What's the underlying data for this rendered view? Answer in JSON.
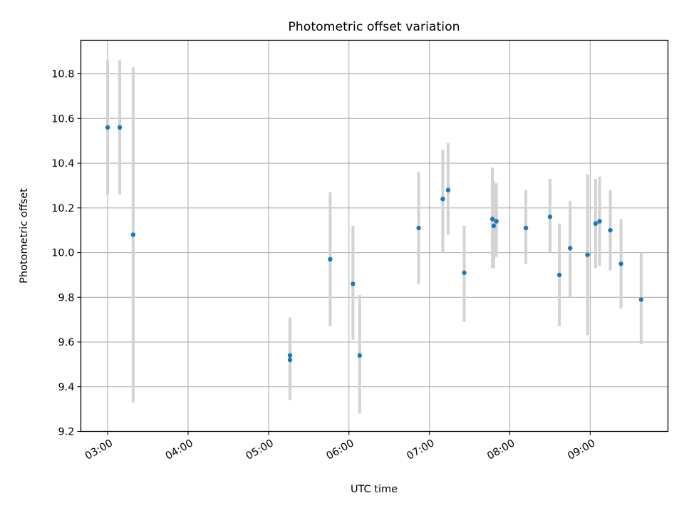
{
  "chart_data": {
    "type": "scatter",
    "title": "Photometric offset variation",
    "xlabel": "UTC time",
    "ylabel": "Photometric offset",
    "x_axis_type": "time",
    "xlim": [
      "02:40",
      "09:58"
    ],
    "ylim": [
      9.2,
      10.95
    ],
    "x_ticks": [
      "03:00",
      "04:00",
      "05:00",
      "06:00",
      "07:00",
      "08:00",
      "09:00"
    ],
    "y_ticks": [
      9.2,
      9.4,
      9.6,
      9.8,
      10.0,
      10.2,
      10.4,
      10.6,
      10.8
    ],
    "y_tick_labels": [
      "9.2",
      "9.4",
      "9.6",
      "9.8",
      "10.0",
      "10.2",
      "10.4",
      "10.6",
      "10.8"
    ],
    "grid": true,
    "series": [
      {
        "marker_color": "#1f77b4",
        "errorbar_color": "#d3d3d3",
        "points": [
          {
            "x": "03:00",
            "y": 10.56,
            "ymin": 10.26,
            "ymax": 10.86
          },
          {
            "x": "03:09",
            "y": 10.56,
            "ymin": 10.26,
            "ymax": 10.86
          },
          {
            "x": "03:19",
            "y": 10.08,
            "ymin": 9.33,
            "ymax": 10.83
          },
          {
            "x": "05:16",
            "y": 9.54,
            "ymin": 9.34,
            "ymax": 9.71
          },
          {
            "x": "05:16",
            "y": 9.52,
            "ymin": 9.34,
            "ymax": 9.7
          },
          {
            "x": "05:46",
            "y": 9.97,
            "ymin": 9.67,
            "ymax": 10.27
          },
          {
            "x": "06:03",
            "y": 9.86,
            "ymin": 9.61,
            "ymax": 10.12
          },
          {
            "x": "06:08",
            "y": 9.54,
            "ymin": 9.28,
            "ymax": 9.81
          },
          {
            "x": "06:52",
            "y": 10.11,
            "ymin": 9.86,
            "ymax": 10.36
          },
          {
            "x": "07:10",
            "y": 10.24,
            "ymin": 10.0,
            "ymax": 10.46
          },
          {
            "x": "07:14",
            "y": 10.28,
            "ymin": 10.08,
            "ymax": 10.49
          },
          {
            "x": "07:26",
            "y": 9.91,
            "ymin": 9.69,
            "ymax": 10.12
          },
          {
            "x": "07:47",
            "y": 10.15,
            "ymin": 9.93,
            "ymax": 10.38
          },
          {
            "x": "07:48",
            "y": 10.12,
            "ymin": 9.93,
            "ymax": 10.32
          },
          {
            "x": "07:50",
            "y": 10.14,
            "ymin": 9.98,
            "ymax": 10.31
          },
          {
            "x": "08:12",
            "y": 10.11,
            "ymin": 9.95,
            "ymax": 10.28
          },
          {
            "x": "08:30",
            "y": 10.16,
            "ymin": 10.0,
            "ymax": 10.33
          },
          {
            "x": "08:37",
            "y": 9.9,
            "ymin": 9.67,
            "ymax": 10.13
          },
          {
            "x": "08:45",
            "y": 10.02,
            "ymin": 9.8,
            "ymax": 10.23
          },
          {
            "x": "08:58",
            "y": 9.99,
            "ymin": 9.63,
            "ymax": 10.35
          },
          {
            "x": "09:04",
            "y": 10.13,
            "ymin": 9.93,
            "ymax": 10.33
          },
          {
            "x": "09:07",
            "y": 10.14,
            "ymin": 9.94,
            "ymax": 10.34
          },
          {
            "x": "09:15",
            "y": 10.1,
            "ymin": 9.92,
            "ymax": 10.28
          },
          {
            "x": "09:23",
            "y": 9.95,
            "ymin": 9.75,
            "ymax": 10.15
          },
          {
            "x": "09:38",
            "y": 9.79,
            "ymin": 9.59,
            "ymax": 10.0
          }
        ]
      }
    ]
  }
}
